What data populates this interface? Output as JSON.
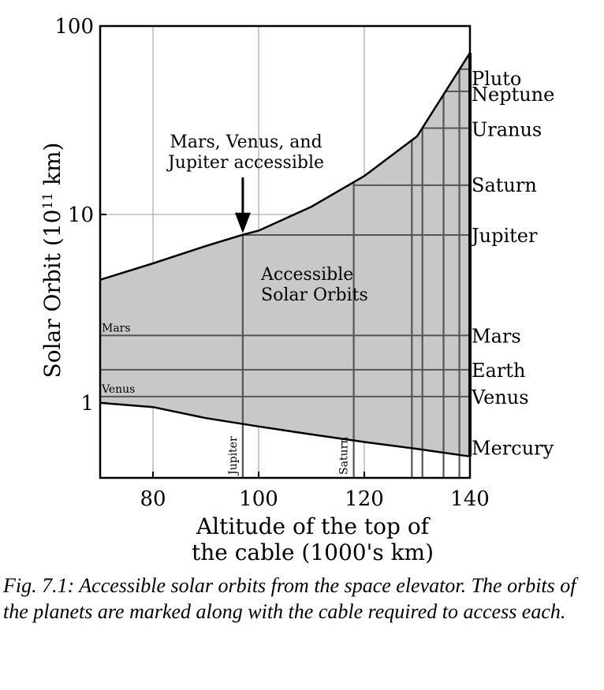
{
  "chart_data": {
    "type": "area",
    "title": "",
    "xlabel_lines": [
      "Altitude of the top of",
      "the cable (1000's km)"
    ],
    "ylabel_main": "Solar Orbit (10",
    "ylabel_sup": "11",
    "ylabel_end": " km)",
    "xlim": [
      70,
      140
    ],
    "ylim": [
      0.4,
      100
    ],
    "yscale": "log",
    "grid": true,
    "x_ticks": [
      {
        "value": 80,
        "label": "80"
      },
      {
        "value": 100,
        "label": "100"
      },
      {
        "value": 120,
        "label": "120"
      },
      {
        "value": 140,
        "label": "140"
      }
    ],
    "y_ticks": [
      {
        "value": 1,
        "label": "1"
      },
      {
        "value": 10,
        "label": "10"
      },
      {
        "value": 100,
        "label": "100"
      }
    ],
    "upper_boundary": [
      [
        70,
        4.5
      ],
      [
        80,
        5.5
      ],
      [
        90,
        6.8
      ],
      [
        97,
        7.8
      ],
      [
        100,
        8.2
      ],
      [
        110,
        11
      ],
      [
        120,
        16
      ],
      [
        130,
        26
      ],
      [
        140,
        72
      ]
    ],
    "lower_boundary": [
      [
        70,
        1.0
      ],
      [
        80,
        0.95
      ],
      [
        90,
        0.83
      ],
      [
        100,
        0.75
      ],
      [
        110,
        0.68
      ],
      [
        120,
        0.62
      ],
      [
        130,
        0.57
      ],
      [
        140,
        0.52
      ]
    ],
    "region_label_lines": [
      "Accessible",
      "Solar Orbits"
    ],
    "fill_color": "#c8c8c8",
    "planets": [
      {
        "name": "Mercury",
        "orbit": 0.58,
        "cable_altitude": 140
      },
      {
        "name": "Venus",
        "orbit": 1.08,
        "cable_altitude": 70
      },
      {
        "name": "Earth",
        "orbit": 1.5,
        "cable_altitude": 70
      },
      {
        "name": "Mars",
        "orbit": 2.28,
        "cable_altitude": 70
      },
      {
        "name": "Jupiter",
        "orbit": 7.78,
        "cable_altitude": 97
      },
      {
        "name": "Saturn",
        "orbit": 14.3,
        "cable_altitude": 118
      },
      {
        "name": "Uranus",
        "orbit": 28.7,
        "cable_altitude": 131
      },
      {
        "name": "Neptune",
        "orbit": 45.0,
        "cable_altitude": 135
      },
      {
        "name": "Pluto",
        "orbit": 59.0,
        "cable_altitude": 138
      }
    ],
    "vertical_cable_lines": [
      {
        "altitude": 97,
        "label": "Jupiter"
      },
      {
        "altitude": 118,
        "label": "Saturn"
      },
      {
        "altitude": 129,
        "label": ""
      },
      {
        "altitude": 131,
        "label": ""
      },
      {
        "altitude": 135,
        "label": ""
      },
      {
        "altitude": 138,
        "label": ""
      }
    ],
    "inner_labels": [
      {
        "text": "Mars",
        "orbit": 2.28
      },
      {
        "text": "Venus",
        "orbit": 1.08
      }
    ],
    "annotation": {
      "lines": [
        "Mars, Venus, and",
        "Jupiter accessible"
      ],
      "arrow_x": 97,
      "arrow_y": 7.8
    }
  },
  "caption": "Fig. 7.1: Accessible solar orbits from the space elevator. The orbits of the planets are marked along with the cable required to access each."
}
